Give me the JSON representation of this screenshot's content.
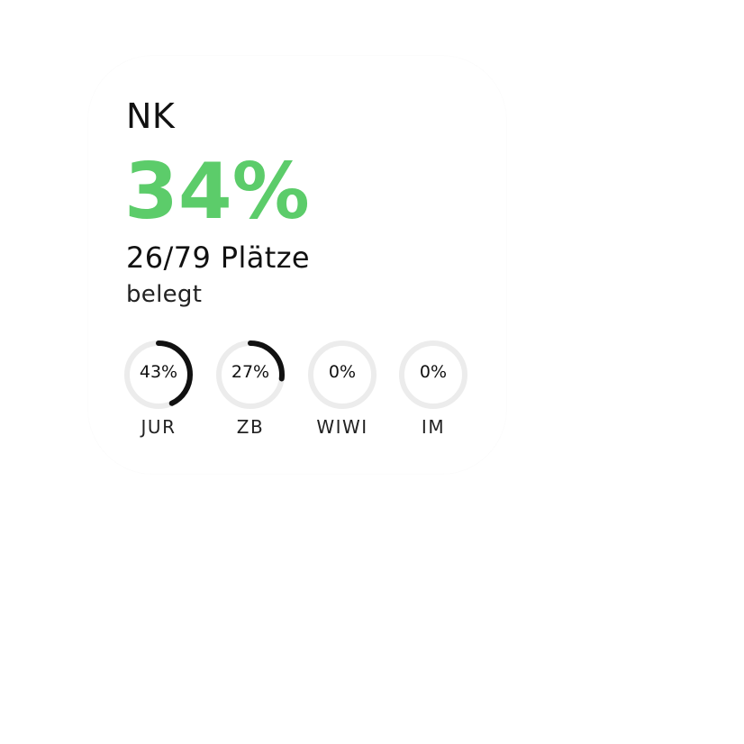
{
  "widget": {
    "title": "NK",
    "percent_text": "34%",
    "seats_text": "26/79 Plätze",
    "status_text": "belegt",
    "accent_color": "#5ccc6a",
    "rings": [
      {
        "label": "JUR",
        "value_text": "43%",
        "fraction": 0.43
      },
      {
        "label": "ZB",
        "value_text": "27%",
        "fraction": 0.27
      },
      {
        "label": "WIWI",
        "value_text": "0%",
        "fraction": 0.0
      },
      {
        "label": "IM",
        "value_text": "0%",
        "fraction": 0.0
      }
    ],
    "ring_track_color": "#ececec",
    "ring_fill_color": "#111111"
  }
}
